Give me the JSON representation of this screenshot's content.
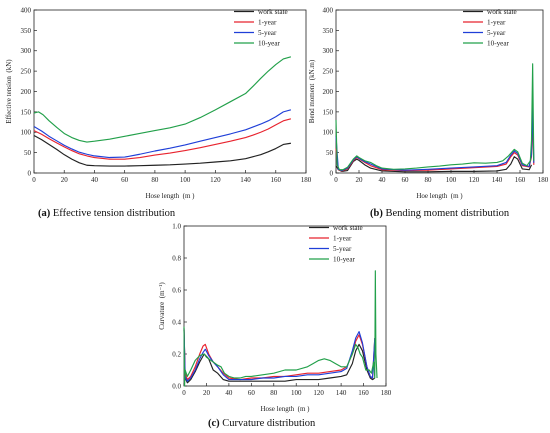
{
  "series_colors": {
    "work state": "#222222",
    "1-year": "#e8232e",
    "5-year": "#1f3fd8",
    "10-year": "#22a04a"
  },
  "chart_data": [
    {
      "id": "a",
      "type": "line",
      "caption": {
        "letter": "(a)",
        "text": " Effective tension distribution"
      },
      "xlabel": "Hose length  (m )",
      "ylabel": "Effective tension  (kN)",
      "xlim": [
        0,
        180
      ],
      "ylim": [
        0,
        400
      ],
      "xticks": [
        "0",
        "20",
        "40",
        "60",
        "80",
        "100",
        "120",
        "140",
        "160",
        "180"
      ],
      "yticks": [
        "0",
        "50",
        "100",
        "150",
        "200",
        "250",
        "300",
        "350",
        "400"
      ],
      "legend": {
        "position": "top-right",
        "entries": [
          "work state",
          "1-year",
          "5-year",
          "10-year"
        ]
      },
      "series": [
        {
          "name": "work state",
          "x": [
            0,
            5,
            10,
            15,
            20,
            25,
            30,
            35,
            40,
            50,
            60,
            70,
            80,
            90,
            100,
            110,
            120,
            130,
            140,
            145,
            150,
            155,
            160,
            165,
            170
          ],
          "y": [
            92,
            82,
            70,
            58,
            45,
            34,
            25,
            19,
            18,
            17,
            17,
            18,
            19,
            20,
            22,
            24,
            27,
            30,
            35,
            40,
            45,
            52,
            60,
            70,
            73
          ]
        },
        {
          "name": "1-year",
          "x": [
            0,
            5,
            10,
            15,
            20,
            25,
            30,
            35,
            40,
            50,
            60,
            70,
            80,
            90,
            100,
            110,
            120,
            130,
            140,
            145,
            150,
            155,
            160,
            165,
            170
          ],
          "y": [
            104,
            95,
            84,
            74,
            64,
            55,
            47,
            42,
            38,
            34,
            34,
            38,
            44,
            49,
            55,
            62,
            70,
            78,
            87,
            93,
            100,
            108,
            118,
            128,
            133
          ]
        },
        {
          "name": "5-year",
          "x": [
            0,
            5,
            10,
            15,
            20,
            25,
            30,
            35,
            40,
            50,
            60,
            70,
            80,
            90,
            100,
            110,
            120,
            130,
            140,
            145,
            150,
            155,
            160,
            165,
            170
          ],
          "y": [
            114,
            103,
            90,
            79,
            68,
            59,
            51,
            46,
            42,
            38,
            39,
            46,
            54,
            61,
            69,
            78,
            87,
            96,
            106,
            113,
            120,
            128,
            138,
            150,
            155
          ]
        },
        {
          "name": "10-year",
          "x": [
            0,
            3,
            6,
            10,
            15,
            20,
            25,
            30,
            35,
            40,
            50,
            60,
            70,
            80,
            90,
            100,
            110,
            120,
            130,
            140,
            145,
            150,
            155,
            160,
            165,
            170
          ],
          "y": [
            147,
            150,
            143,
            128,
            112,
            97,
            87,
            80,
            76,
            78,
            83,
            90,
            97,
            104,
            111,
            120,
            136,
            155,
            175,
            195,
            213,
            232,
            250,
            266,
            280,
            285
          ]
        }
      ]
    },
    {
      "id": "b",
      "type": "line",
      "caption": {
        "letter": "(b)",
        "text": " Bending moment distribution"
      },
      "xlabel": "Hoe length  (m )",
      "ylabel": "Bend moment  (kN.m)",
      "xlim": [
        0,
        180
      ],
      "ylim": [
        0,
        400
      ],
      "xticks": [
        "0",
        "20",
        "40",
        "60",
        "80",
        "100",
        "120",
        "140",
        "160",
        "180"
      ],
      "yticks": [
        "0",
        "50",
        "100",
        "150",
        "200",
        "250",
        "300",
        "350",
        "400"
      ],
      "legend": {
        "position": "top-right",
        "entries": [
          "work state",
          "1-year",
          "5-year",
          "10-year"
        ]
      },
      "series": [
        {
          "name": "work state",
          "x": [
            0,
            2,
            5,
            10,
            15,
            18,
            20,
            25,
            30,
            40,
            60,
            80,
            100,
            120,
            140,
            148,
            152,
            155,
            158,
            162,
            168,
            170
          ],
          "y": [
            18,
            8,
            4,
            6,
            28,
            34,
            31,
            20,
            12,
            5,
            3,
            3,
            4,
            4,
            5,
            9,
            22,
            40,
            34,
            10,
            8,
            20
          ]
        },
        {
          "name": "1-year",
          "x": [
            0,
            2,
            5,
            10,
            15,
            18,
            20,
            25,
            30,
            40,
            60,
            80,
            100,
            120,
            140,
            148,
            152,
            155,
            158,
            162,
            168,
            170,
            171,
            172
          ],
          "y": [
            60,
            8,
            5,
            10,
            30,
            38,
            35,
            26,
            18,
            8,
            6,
            7,
            10,
            13,
            16,
            22,
            40,
            50,
            44,
            18,
            15,
            40,
            130,
            20
          ]
        },
        {
          "name": "5-year",
          "x": [
            0,
            2,
            5,
            10,
            15,
            18,
            20,
            25,
            30,
            40,
            60,
            80,
            100,
            120,
            140,
            148,
            152,
            155,
            158,
            162,
            168,
            170,
            171,
            172
          ],
          "y": [
            90,
            9,
            6,
            12,
            32,
            40,
            36,
            28,
            22,
            10,
            7,
            9,
            12,
            15,
            18,
            26,
            44,
            54,
            48,
            20,
            16,
            45,
            170,
            25
          ]
        },
        {
          "name": "10-year",
          "x": [
            0,
            1,
            3,
            6,
            10,
            15,
            18,
            20,
            25,
            30,
            35,
            40,
            50,
            60,
            70,
            80,
            90,
            100,
            110,
            120,
            130,
            140,
            145,
            150,
            155,
            158,
            162,
            166,
            169,
            170,
            171,
            172
          ],
          "y": [
            130,
            20,
            8,
            8,
            14,
            34,
            42,
            38,
            30,
            26,
            18,
            12,
            9,
            10,
            12,
            15,
            17,
            20,
            22,
            25,
            24,
            26,
            30,
            42,
            58,
            52,
            24,
            18,
            30,
            80,
            268,
            30
          ]
        }
      ]
    },
    {
      "id": "c",
      "type": "line",
      "caption": {
        "letter": "(c)",
        "text": " Curvature distribution"
      },
      "xlabel": "Hose length  (m )",
      "ylabel": "Curvature  (m⁻¹)",
      "xlim": [
        0,
        180
      ],
      "ylim": [
        0,
        1.0
      ],
      "xticks": [
        "0",
        "20",
        "40",
        "60",
        "80",
        "100",
        "120",
        "140",
        "160",
        "180"
      ],
      "yticks": [
        "0.0",
        "0.2",
        "0.4",
        "0.6",
        "0.8",
        "1.0"
      ],
      "legend": {
        "position": "top-right",
        "entries": [
          "work state",
          "1-year",
          "5-year",
          "10-year"
        ]
      },
      "series": [
        {
          "name": "work state",
          "x": [
            0,
            1,
            3,
            6,
            10,
            14,
            18,
            22,
            26,
            30,
            35,
            40,
            50,
            60,
            70,
            80,
            90,
            100,
            110,
            120,
            130,
            140,
            145,
            150,
            153,
            156,
            159,
            163,
            166,
            168,
            170
          ],
          "y": [
            0.35,
            0.05,
            0.02,
            0.04,
            0.09,
            0.15,
            0.2,
            0.17,
            0.1,
            0.08,
            0.04,
            0.03,
            0.03,
            0.03,
            0.03,
            0.03,
            0.03,
            0.04,
            0.04,
            0.04,
            0.05,
            0.06,
            0.07,
            0.14,
            0.22,
            0.26,
            0.22,
            0.1,
            0.05,
            0.04,
            0.05
          ]
        },
        {
          "name": "1-year",
          "x": [
            0,
            1,
            3,
            6,
            10,
            14,
            17,
            19,
            22,
            26,
            30,
            35,
            40,
            50,
            60,
            70,
            80,
            90,
            100,
            110,
            120,
            130,
            140,
            145,
            150,
            153,
            156,
            159,
            163,
            166,
            168,
            170
          ],
          "y": [
            0.36,
            0.08,
            0.04,
            0.06,
            0.12,
            0.2,
            0.25,
            0.26,
            0.2,
            0.15,
            0.12,
            0.08,
            0.05,
            0.04,
            0.05,
            0.05,
            0.06,
            0.06,
            0.07,
            0.08,
            0.08,
            0.09,
            0.1,
            0.12,
            0.2,
            0.28,
            0.32,
            0.26,
            0.12,
            0.06,
            0.05,
            0.3
          ]
        },
        {
          "name": "5-year",
          "x": [
            0,
            1,
            3,
            6,
            10,
            14,
            17,
            19,
            22,
            26,
            30,
            35,
            40,
            50,
            60,
            70,
            80,
            90,
            100,
            110,
            120,
            130,
            140,
            145,
            150,
            153,
            156,
            159,
            163,
            166,
            168,
            170
          ],
          "y": [
            0.36,
            0.06,
            0.03,
            0.05,
            0.1,
            0.17,
            0.21,
            0.23,
            0.19,
            0.15,
            0.12,
            0.07,
            0.04,
            0.04,
            0.04,
            0.05,
            0.05,
            0.06,
            0.06,
            0.07,
            0.07,
            0.08,
            0.09,
            0.11,
            0.22,
            0.3,
            0.34,
            0.27,
            0.12,
            0.06,
            0.05,
            0.3
          ]
        },
        {
          "name": "10-year",
          "x": [
            0,
            0.5,
            1,
            3,
            6,
            10,
            14,
            18,
            20,
            22,
            26,
            30,
            33,
            36,
            40,
            45,
            50,
            55,
            60,
            70,
            80,
            90,
            100,
            110,
            115,
            120,
            125,
            130,
            135,
            140,
            145,
            150,
            153,
            155,
            157,
            159,
            162,
            165,
            167,
            169,
            170,
            170.5,
            171,
            172
          ],
          "y": [
            0.37,
            0.0,
            0.1,
            0.06,
            0.1,
            0.16,
            0.19,
            0.2,
            0.18,
            0.17,
            0.15,
            0.13,
            0.12,
            0.08,
            0.06,
            0.05,
            0.05,
            0.06,
            0.06,
            0.07,
            0.08,
            0.1,
            0.1,
            0.12,
            0.14,
            0.16,
            0.17,
            0.16,
            0.14,
            0.12,
            0.12,
            0.2,
            0.26,
            0.24,
            0.2,
            0.18,
            0.1,
            0.1,
            0.08,
            0.15,
            0.05,
            0.72,
            0.2,
            0.05
          ]
        }
      ]
    }
  ]
}
